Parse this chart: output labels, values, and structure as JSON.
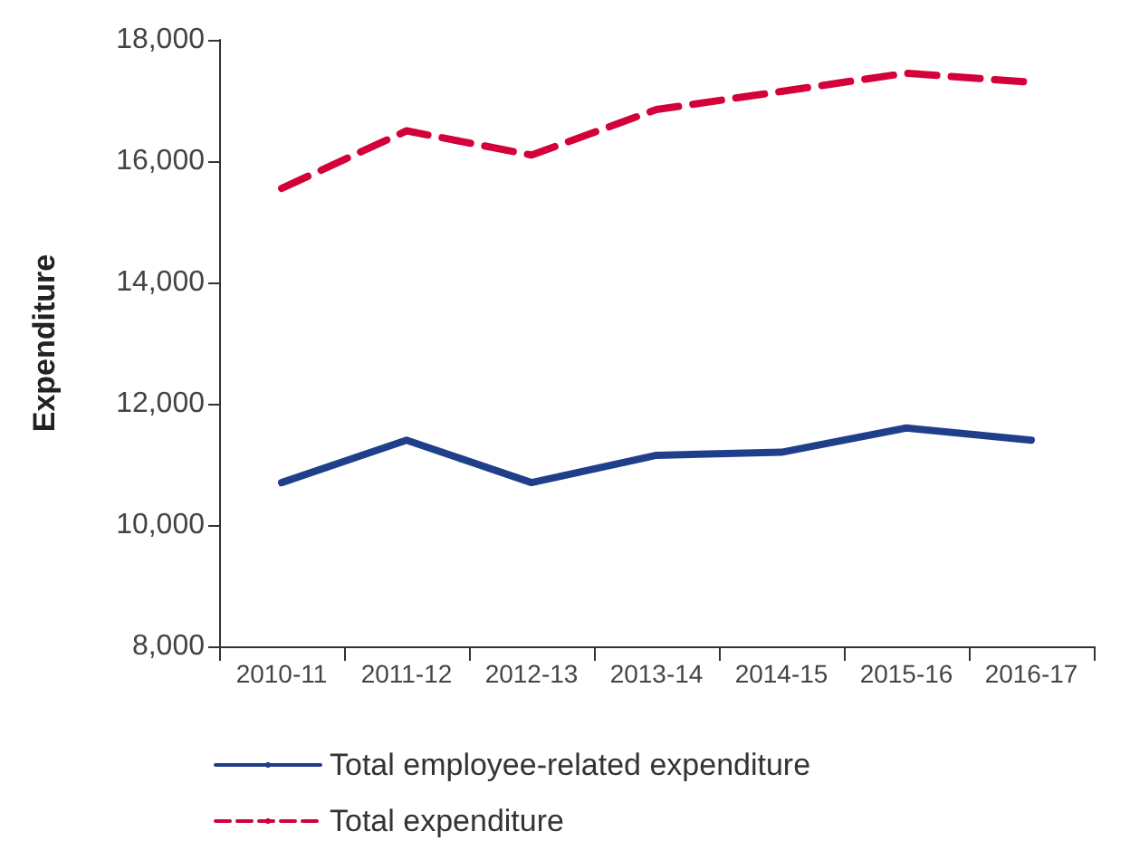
{
  "chart_data": {
    "type": "line",
    "ylabel": "Expenditure",
    "categories": [
      "2010-11",
      "2011-12",
      "2012-13",
      "2013-14",
      "2014-15",
      "2015-16",
      "2016-17"
    ],
    "series": [
      {
        "name": "Total employee-related expenditure",
        "color": "#1f3f8a",
        "line_style": "solid",
        "values": [
          10700,
          11400,
          10700,
          11150,
          11200,
          11600,
          11400
        ]
      },
      {
        "name": "Total expenditure",
        "color": "#d4003a",
        "line_style": "dashed",
        "values": [
          15550,
          16500,
          16100,
          16850,
          17150,
          17450,
          17300
        ]
      }
    ],
    "ylim": [
      8000,
      18000
    ],
    "yticks": [
      {
        "value": 8000,
        "label": "8,000"
      },
      {
        "value": 10000,
        "label": "10,000"
      },
      {
        "value": 12000,
        "label": "12,000"
      },
      {
        "value": 14000,
        "label": "14,000"
      },
      {
        "value": 16000,
        "label": "16,000"
      },
      {
        "value": 18000,
        "label": "18,000"
      }
    ],
    "grid": false,
    "legend": "bottom left",
    "marker": "none"
  }
}
